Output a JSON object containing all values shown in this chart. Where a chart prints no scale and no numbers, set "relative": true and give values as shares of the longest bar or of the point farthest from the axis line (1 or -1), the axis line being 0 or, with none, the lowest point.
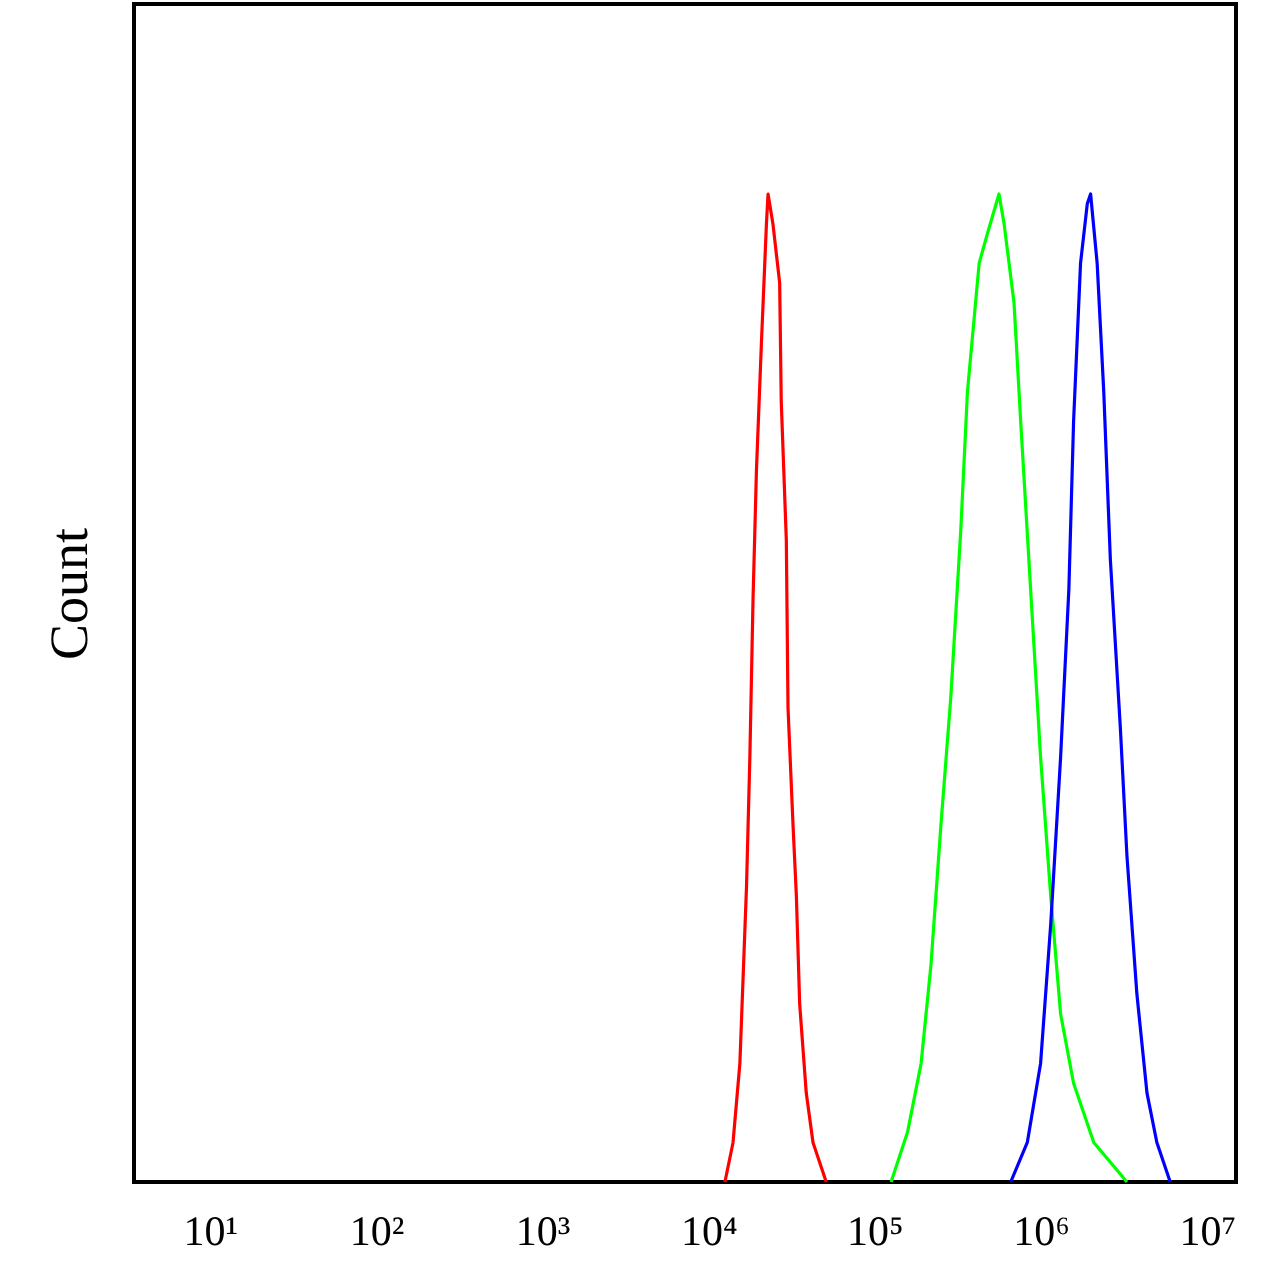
{
  "chart_data": {
    "type": "line",
    "ylabel": "Count",
    "relative": true,
    "log": "x",
    "grid": false,
    "tick_labels": "x",
    "marker": "none",
    "line_style": "solid",
    "xlim": [
      3.5,
      15000000
    ],
    "xticks": [
      {
        "value": 10,
        "label": "10¹"
      },
      {
        "value": 100,
        "label": "10²"
      },
      {
        "value": 1000,
        "label": "10³"
      },
      {
        "value": 10000,
        "label": "10⁴"
      },
      {
        "value": 100000,
        "label": "10⁵"
      },
      {
        "value": 1000000,
        "label": "10⁶"
      },
      {
        "value": 10000000,
        "label": "10⁷"
      }
    ],
    "series": [
      {
        "color": "#ff0000",
        "x": [
          12600,
          14100,
          15500,
          17000,
          17800,
          18600,
          19500,
          20900,
          22400,
          22900,
          24500,
          26900,
          27500,
          29500,
          30200,
          32400,
          33900,
          35500,
          38900,
          42700,
          51300
        ],
        "values": [
          0,
          0.04,
          0.12,
          0.3,
          0.43,
          0.59,
          0.72,
          0.85,
          0.97,
          1,
          0.97,
          0.91,
          0.79,
          0.65,
          0.48,
          0.36,
          0.29,
          0.18,
          0.09,
          0.04,
          0
        ]
      },
      {
        "color": "#00ff00",
        "x": [
          126000,
          158000,
          191000,
          219000,
          251000,
          288000,
          331000,
          363000,
          427000,
          479000,
          562000,
          603000,
          692000,
          759000,
          871000,
          1000000,
          1150000,
          1320000,
          1580000,
          2090000,
          3310000
        ],
        "values": [
          0,
          0.05,
          0.12,
          0.22,
          0.36,
          0.49,
          0.66,
          0.8,
          0.93,
          0.96,
          1,
          0.97,
          0.89,
          0.77,
          0.6,
          0.43,
          0.29,
          0.17,
          0.1,
          0.04,
          0
        ]
      },
      {
        "color": "#0000ff",
        "x": [
          661000,
          832000,
          1000000,
          1150000,
          1320000,
          1480000,
          1580000,
          1740000,
          1910000,
          2000000,
          2190000,
          2400000,
          2630000,
          3020000,
          3310000,
          3800000,
          4370000,
          5010000,
          6030000
        ],
        "values": [
          0,
          0.04,
          0.12,
          0.26,
          0.43,
          0.6,
          0.77,
          0.93,
          0.99,
          1,
          0.93,
          0.8,
          0.63,
          0.46,
          0.33,
          0.19,
          0.09,
          0.04,
          0
        ]
      }
    ]
  }
}
